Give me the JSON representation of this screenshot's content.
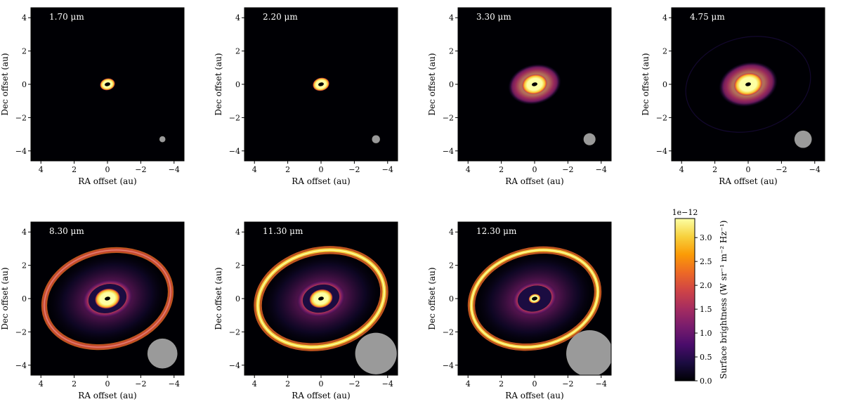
{
  "figure": {
    "x_axis_label": "RA offset (au)",
    "y_axis_label": "Dec offset (au)",
    "x_ticks": [
      4,
      2,
      0,
      -2,
      -4
    ],
    "y_ticks": [
      4,
      2,
      0,
      -2,
      -4
    ],
    "xlim": [
      4.6,
      -4.6
    ],
    "ylim": [
      -4.6,
      4.6
    ],
    "background_color": "#000004"
  },
  "chart_data": [
    {
      "type": "heatmap",
      "title": "1.70 μm",
      "wavelength_um": 1.7,
      "xlabel": "RA offset (au)",
      "ylabel": "Dec offset (au)",
      "features": {
        "core_radius_au": 0.45,
        "dark_ring_outer_au": 0,
        "bright_ring_radius_au": 0,
        "bright_ring_width_au": 0,
        "faint_halo_radius_au": 0
      },
      "beam": {
        "center_ra_au": -3.3,
        "center_dec_au": -3.3,
        "radius_au": 0.18,
        "color": "#9a9a9a"
      }
    },
    {
      "type": "heatmap",
      "title": "2.20 μm",
      "wavelength_um": 2.2,
      "xlabel": "RA offset (au)",
      "ylabel": "Dec offset (au)",
      "features": {
        "core_radius_au": 0.5,
        "dark_ring_outer_au": 0,
        "bright_ring_radius_au": 0,
        "bright_ring_width_au": 0,
        "faint_halo_radius_au": 0
      },
      "beam": {
        "center_ra_au": -3.3,
        "center_dec_au": -3.3,
        "radius_au": 0.24,
        "color": "#9a9a9a"
      }
    },
    {
      "type": "heatmap",
      "title": "3.30 μm",
      "wavelength_um": 3.3,
      "xlabel": "RA offset (au)",
      "ylabel": "Dec offset (au)",
      "features": {
        "core_radius_au": 0.75,
        "dark_ring_outer_au": 1.4,
        "bright_ring_radius_au": 0,
        "bright_ring_width_au": 0,
        "faint_halo_radius_au": 0
      },
      "beam": {
        "center_ra_au": -3.3,
        "center_dec_au": -3.3,
        "radius_au": 0.36,
        "color": "#9a9a9a"
      }
    },
    {
      "type": "heatmap",
      "title": "4.75 μm",
      "wavelength_um": 4.75,
      "xlabel": "RA offset (au)",
      "ylabel": "Dec offset (au)",
      "features": {
        "core_radius_au": 0.85,
        "dark_ring_outer_au": 1.55,
        "bright_ring_radius_au": 0,
        "bright_ring_width_au": 0,
        "faint_halo_radius_au": 3.8
      },
      "beam": {
        "center_ra_au": -3.3,
        "center_dec_au": -3.3,
        "radius_au": 0.52,
        "color": "#9a9a9a"
      }
    },
    {
      "type": "heatmap",
      "title": "8.30 μm",
      "wavelength_um": 8.3,
      "xlabel": "RA offset (au)",
      "ylabel": "Dec offset (au)",
      "features": {
        "core_radius_au": 0.75,
        "dark_ring_outer_au": 1.35,
        "bright_ring_radius_au": 3.85,
        "bright_ring_width_au": 0.16,
        "faint_halo_radius_au": 0
      },
      "beam": {
        "center_ra_au": -3.3,
        "center_dec_au": -3.3,
        "radius_au": 0.9,
        "color": "#9a9a9a"
      }
    },
    {
      "type": "heatmap",
      "title": "11.30 μm",
      "wavelength_um": 11.3,
      "xlabel": "RA offset (au)",
      "ylabel": "Dec offset (au)",
      "features": {
        "core_radius_au": 0.7,
        "dark_ring_outer_au": 1.3,
        "bright_ring_radius_au": 3.85,
        "bright_ring_width_au": 0.22,
        "faint_halo_radius_au": 0
      },
      "beam": {
        "center_ra_au": -3.3,
        "center_dec_au": -3.3,
        "radius_au": 1.25,
        "color": "#9a9a9a"
      }
    },
    {
      "type": "heatmap",
      "title": "12.30 μm",
      "wavelength_um": 12.3,
      "xlabel": "RA offset (au)",
      "ylabel": "Dec offset (au)",
      "features": {
        "core_radius_au": 0.35,
        "dark_ring_outer_au": 1.2,
        "bright_ring_radius_au": 3.85,
        "bright_ring_width_au": 0.2,
        "faint_halo_radius_au": 0
      },
      "beam": {
        "center_ra_au": -3.3,
        "center_dec_au": -3.3,
        "radius_au": 1.4,
        "color": "#9a9a9a"
      }
    }
  ],
  "colorbar": {
    "label": "Surface brightness (W sr⁻¹ m⁻² Hz⁻¹)",
    "scale_label": "1e−12",
    "ticks": [
      "0.0",
      "0.5",
      "1.0",
      "1.5",
      "2.0",
      "2.5",
      "3.0"
    ],
    "tick_values": [
      0,
      0.5,
      1.0,
      1.5,
      2.0,
      2.5,
      3.0
    ],
    "range": [
      0,
      3.4
    ],
    "colormap": "inferno",
    "colormap_stops": [
      "#000004",
      "#1b0c41",
      "#4a0c6b",
      "#781c6d",
      "#a52c60",
      "#cf4446",
      "#ed6925",
      "#fb9b06",
      "#f7d13d",
      "#fcffa4"
    ]
  }
}
